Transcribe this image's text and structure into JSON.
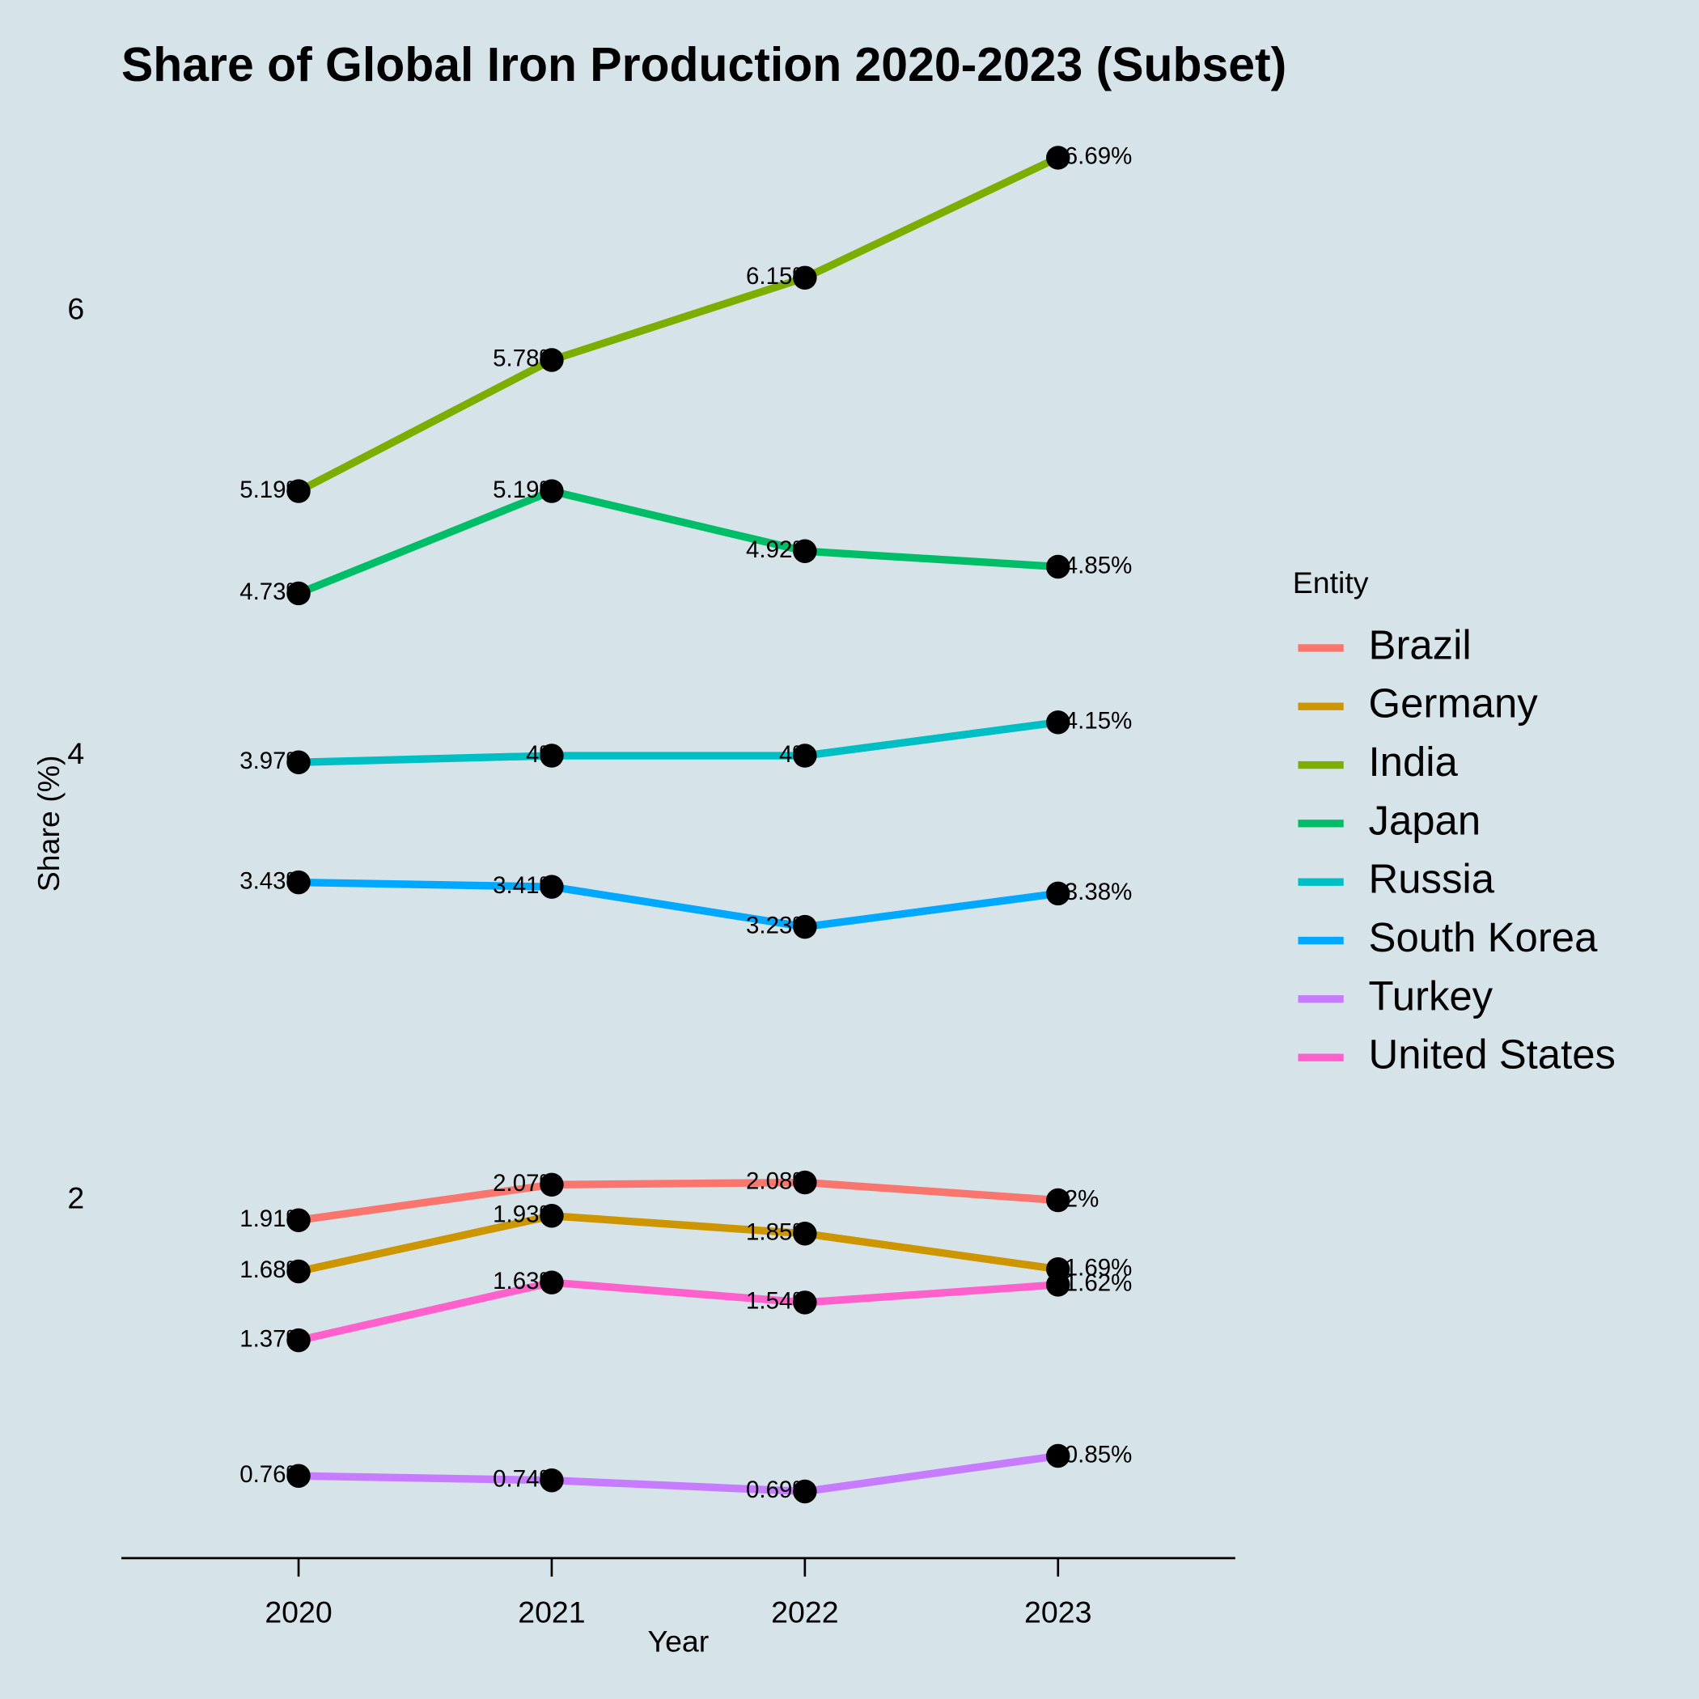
{
  "chart_data": {
    "type": "line",
    "title": "Share of Global Iron Production 2020-2023 (Subset)",
    "x_label": "Year",
    "y_label": "Share (%)",
    "legend_title": "Entity",
    "legend_position": "right",
    "x": [
      2020,
      2021,
      2022,
      2023
    ],
    "xlim": [
      2019.3,
      2023.7
    ],
    "xticks": [
      2020,
      2021,
      2022,
      2023
    ],
    "ylim": [
      0.39,
      6.99
    ],
    "yticks": [
      2,
      4,
      6
    ],
    "grid": false,
    "marker_color": "#000000",
    "series": [
      {
        "name": "Brazil",
        "color": "#F8766D",
        "values": [
          1.91,
          2.07,
          2.08,
          2
        ],
        "value_labels": [
          "1.91%",
          "2.07%",
          "2.08%",
          "2%"
        ]
      },
      {
        "name": "Germany",
        "color": "#CD9600",
        "values": [
          1.68,
          1.93,
          1.85,
          1.69
        ],
        "value_labels": [
          "1.68%",
          "1.93%",
          "1.85%",
          "1.69%"
        ]
      },
      {
        "name": "India",
        "color": "#7CAE00",
        "values": [
          5.19,
          5.78,
          6.15,
          6.69
        ],
        "value_labels": [
          "5.19%",
          "5.78%",
          "6.15%",
          "6.69%"
        ]
      },
      {
        "name": "Japan",
        "color": "#00BE67",
        "values": [
          4.73,
          5.19,
          4.92,
          4.85
        ],
        "value_labels": [
          "4.73%",
          "5.19%",
          "4.92%",
          "4.85%"
        ]
      },
      {
        "name": "Russia",
        "color": "#00BFC4",
        "values": [
          3.97,
          4,
          4,
          4.15
        ],
        "value_labels": [
          "3.97%",
          "4%",
          "4%",
          "4.15%"
        ]
      },
      {
        "name": "South Korea",
        "color": "#00A9FF",
        "values": [
          3.43,
          3.41,
          3.23,
          3.38
        ],
        "value_labels": [
          "3.43%",
          "3.41%",
          "3.23%",
          "3.38%"
        ]
      },
      {
        "name": "Turkey",
        "color": "#C77CFF",
        "values": [
          0.76,
          0.74,
          0.69,
          0.85
        ],
        "value_labels": [
          "0.76%",
          "0.74%",
          "0.69%",
          "0.85%"
        ]
      },
      {
        "name": "United States",
        "color": "#FF61CC",
        "values": [
          1.37,
          1.63,
          1.54,
          1.62
        ],
        "value_labels": [
          "1.37%",
          "1.63%",
          "1.54%",
          "1.62%"
        ]
      }
    ]
  }
}
